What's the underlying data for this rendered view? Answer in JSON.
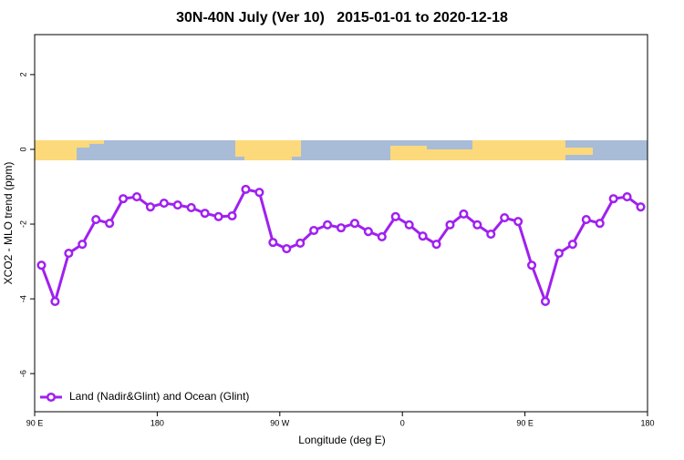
{
  "chart_data": {
    "type": "line",
    "title": "30N-40N July (Ver 10)   2015-01-01 to 2020-12-18",
    "x_label": "Longitude (deg E)",
    "y_label": "XCO2 - MLO trend (ppm)",
    "x": [
      95,
      105,
      115,
      125,
      135,
      145,
      155,
      165,
      175,
      185,
      195,
      205,
      215,
      225,
      235,
      245,
      255,
      265,
      275,
      285,
      295,
      305,
      315,
      325,
      335,
      345,
      355,
      365,
      375,
      385,
      395,
      405,
      415,
      425,
      435,
      445,
      455,
      465,
      475,
      485,
      495,
      505,
      515,
      525,
      535
    ],
    "series": [
      {
        "name": "Land (Nadir&Glint) and Ocean (Glint)",
        "color": "#a020f0",
        "values": [
          -3.1,
          -4.07,
          -2.78,
          -2.54,
          -1.88,
          -1.98,
          -1.32,
          -1.27,
          -1.54,
          -1.44,
          -1.49,
          -1.56,
          -1.71,
          -1.8,
          -1.78,
          -1.07,
          -1.15,
          -2.49,
          -2.66,
          -2.51,
          -2.17,
          -2.02,
          -2.1,
          -1.98,
          -2.2,
          -2.34,
          -1.8,
          -2.02,
          -2.32,
          -2.54,
          -2.02,
          -1.73,
          -2.02,
          -2.27,
          -1.83,
          -1.93,
          -3.1,
          -4.07,
          -2.78,
          -2.54,
          -1.88,
          -1.98,
          -1.32,
          -1.27,
          -1.54
        ]
      }
    ],
    "xlim": [
      90,
      540
    ],
    "xticks": [
      {
        "value": 90,
        "label": "90 E"
      },
      180,
      {
        "value": 270,
        "label": "90 W"
      },
      {
        "value": 360,
        "label": "0"
      },
      {
        "value": 450,
        "label": "90 E"
      },
      {
        "value": 540,
        "label": "180"
      }
    ],
    "ylim": [
      -7.02,
      3.07
    ],
    "yticks": [
      2,
      0,
      -2,
      -4,
      -6
    ],
    "legend": "bottom-left"
  }
}
